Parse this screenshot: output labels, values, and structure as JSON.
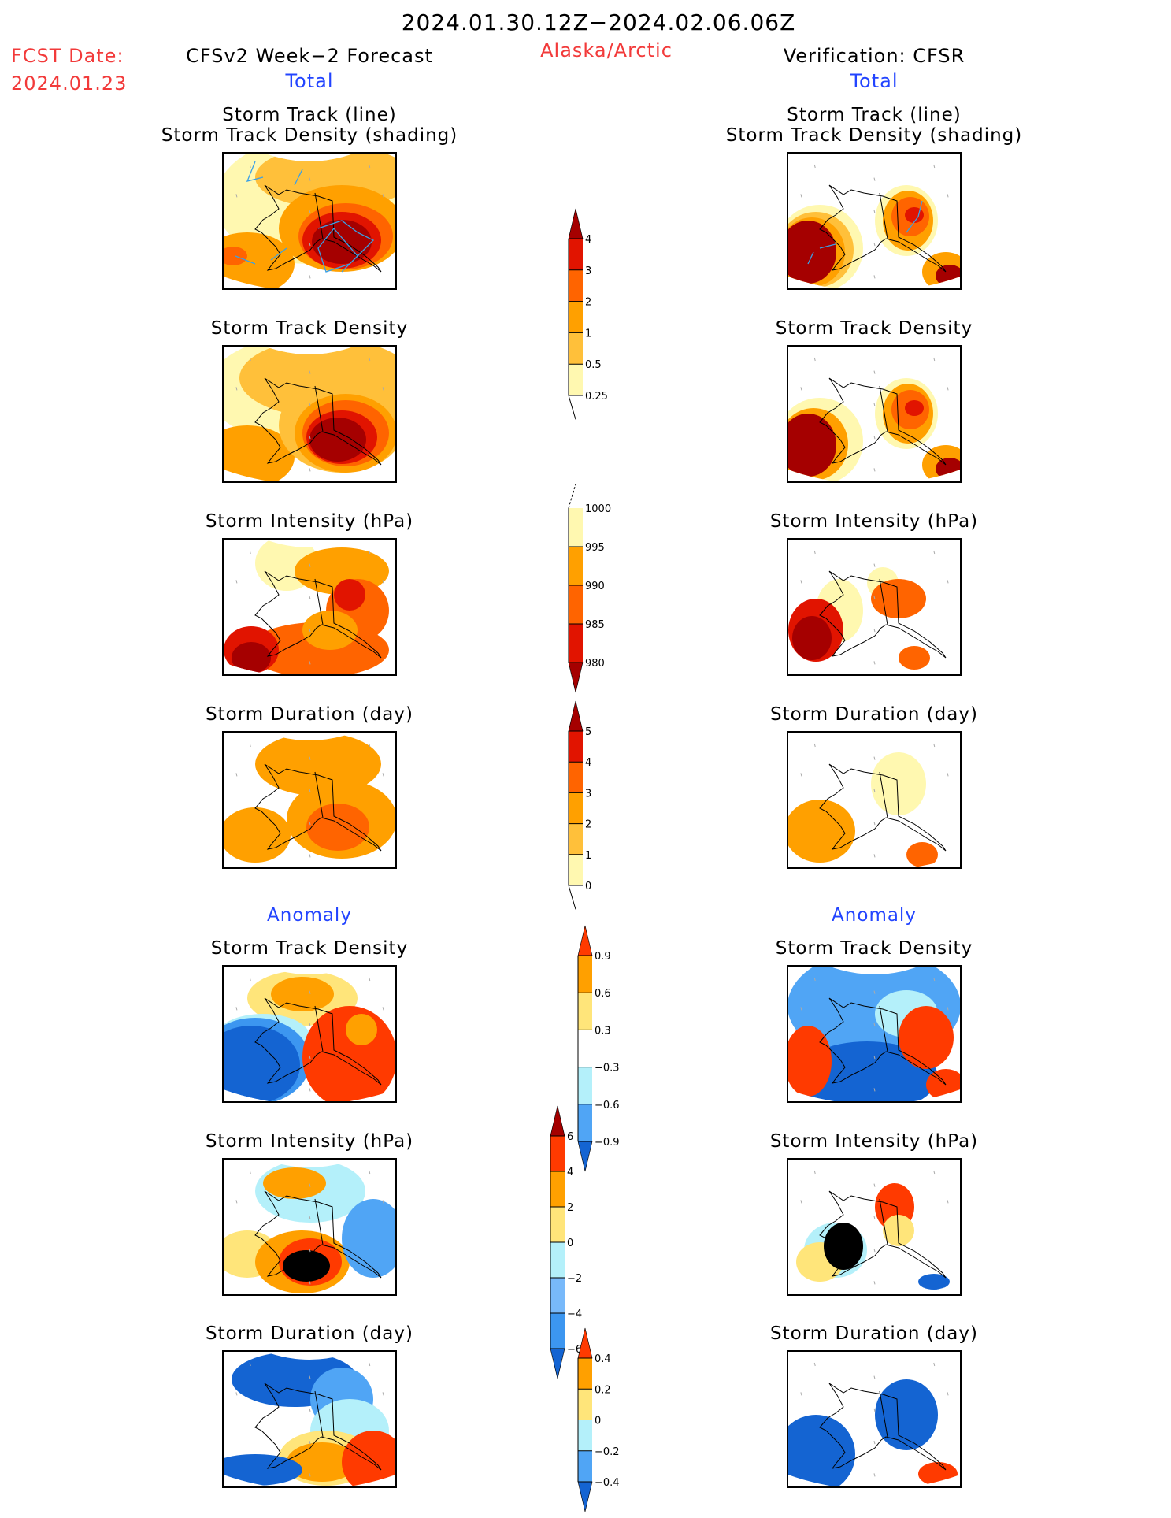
{
  "header": {
    "period": "2024.01.30.12Z−2024.02.06.06Z",
    "region": "Alaska/Arctic",
    "fcst_label": "FCST Date:",
    "fcst_date": "2024.01.23",
    "left_title": "CFSv2 Week−2 Forecast",
    "right_title": "Verification: CFSR",
    "total_label": "Total",
    "anomaly_label": "Anomaly"
  },
  "panel_titles": {
    "track_line": "Storm Track (line)",
    "track_shading": "Storm Track Density (shading)",
    "density": "Storm Track Density",
    "intensity": "Storm Intensity (hPa)",
    "duration": "Storm Duration (day)"
  },
  "colors": {
    "c_lightyellow": "#fff8b0",
    "c_lightorange": "#ffc03a",
    "c_orange": "#ffa000",
    "c_darkorange": "#ff6400",
    "c_red": "#e11400",
    "c_darkred": "#a50000",
    "a_red": "#ff3a00",
    "a_orange": "#ffa000",
    "a_yellow": "#ffe57a",
    "a_lightblue": "#b4f0fa",
    "a_midblue": "#50a5f5",
    "a_softblue": "#78b9fa",
    "a_blue": "#3c96f0",
    "a_darkblue": "#1464d2",
    "track_line": "#3aa0e6"
  },
  "chart_data": [
    {
      "type": "heatmap",
      "name": "forecast-total-track-density",
      "column": "CFSv2 Week-2 Forecast",
      "section": "Total",
      "title": "Storm Track (line) / Storm Track Density (shading)",
      "colorbar": "density"
    },
    {
      "type": "heatmap",
      "name": "verification-total-track-density",
      "column": "Verification: CFSR",
      "section": "Total",
      "title": "Storm Track (line) / Storm Track Density (shading)",
      "colorbar": "density"
    },
    {
      "type": "heatmap",
      "name": "forecast-total-density",
      "column": "CFSv2 Week-2 Forecast",
      "section": "Total",
      "title": "Storm Track Density",
      "colorbar": "density"
    },
    {
      "type": "heatmap",
      "name": "verification-total-density",
      "column": "Verification: CFSR",
      "section": "Total",
      "title": "Storm Track Density",
      "colorbar": "density"
    },
    {
      "type": "heatmap",
      "name": "forecast-total-intensity",
      "column": "CFSv2 Week-2 Forecast",
      "section": "Total",
      "title": "Storm Intensity (hPa)",
      "colorbar": "intensity"
    },
    {
      "type": "heatmap",
      "name": "verification-total-intensity",
      "column": "Verification: CFSR",
      "section": "Total",
      "title": "Storm Intensity (hPa)",
      "colorbar": "intensity"
    },
    {
      "type": "heatmap",
      "name": "forecast-total-duration",
      "column": "CFSv2 Week-2 Forecast",
      "section": "Total",
      "title": "Storm Duration (day)",
      "colorbar": "duration"
    },
    {
      "type": "heatmap",
      "name": "verification-total-duration",
      "column": "Verification: CFSR",
      "section": "Total",
      "title": "Storm Duration (day)",
      "colorbar": "duration"
    },
    {
      "type": "heatmap",
      "name": "forecast-anomaly-density",
      "column": "CFSv2 Week-2 Forecast",
      "section": "Anomaly",
      "title": "Storm Track Density",
      "colorbar": "density_anom"
    },
    {
      "type": "heatmap",
      "name": "verification-anomaly-density",
      "column": "Verification: CFSR",
      "section": "Anomaly",
      "title": "Storm Track Density",
      "colorbar": "density_anom"
    },
    {
      "type": "heatmap",
      "name": "forecast-anomaly-intensity",
      "column": "CFSv2 Week-2 Forecast",
      "section": "Anomaly",
      "title": "Storm Intensity (hPa)",
      "colorbar": "intensity_anom"
    },
    {
      "type": "heatmap",
      "name": "verification-anomaly-intensity",
      "column": "Verification: CFSR",
      "section": "Anomaly",
      "title": "Storm Intensity (hPa)",
      "colorbar": "intensity_anom"
    },
    {
      "type": "heatmap",
      "name": "forecast-anomaly-duration",
      "column": "CFSv2 Week-2 Forecast",
      "section": "Anomaly",
      "title": "Storm Duration (day)",
      "colorbar": "duration_anom"
    },
    {
      "type": "heatmap",
      "name": "verification-anomaly-duration",
      "column": "Verification: CFSR",
      "section": "Anomaly",
      "title": "Storm Duration (day)",
      "colorbar": "duration_anom"
    }
  ],
  "colorbars": {
    "density": {
      "levels": [
        "4",
        "3",
        "2",
        "1",
        "0.5",
        "0.25"
      ],
      "colors": [
        "#a50000",
        "#e11400",
        "#ff6400",
        "#ffa000",
        "#ffc03a",
        "#fff8b0"
      ],
      "extend": "max"
    },
    "intensity": {
      "levels": [
        "1000",
        "995",
        "990",
        "985",
        "980"
      ],
      "colors": [
        "#fff8b0",
        "#ffa000",
        "#ff6400",
        "#e11400",
        "#a50000"
      ],
      "extend": "min"
    },
    "duration": {
      "levels": [
        "5",
        "4",
        "3",
        "2",
        "1",
        "0"
      ],
      "colors": [
        "#a50000",
        "#e11400",
        "#ff6400",
        "#ffa000",
        "#ffc03a",
        "#fff8b0"
      ],
      "extend": "max"
    },
    "density_anom": {
      "levels": [
        "0.9",
        "0.6",
        "0.3",
        "−0.3",
        "−0.6",
        "−0.9"
      ],
      "colors": [
        "#ff3a00",
        "#ffa000",
        "#ffe57a",
        "#ffffff",
        "#b4f0fa",
        "#50a5f5",
        "#1464d2"
      ],
      "extend": "both"
    },
    "intensity_anom": {
      "levels": [
        "6",
        "4",
        "2",
        "0",
        "−2",
        "−4",
        "−6"
      ],
      "colors": [
        "#a50000",
        "#ff3a00",
        "#ffa000",
        "#ffe57a",
        "#b4f0fa",
        "#78b9fa",
        "#3c96f0",
        "#1464d2"
      ],
      "extend": "both"
    },
    "duration_anom": {
      "levels": [
        "0.4",
        "0.2",
        "0",
        "−0.2",
        "−0.4"
      ],
      "colors": [
        "#ff3a00",
        "#ffa000",
        "#ffe57a",
        "#b4f0fa",
        "#50a5f5",
        "#1464d2"
      ],
      "extend": "both"
    }
  }
}
